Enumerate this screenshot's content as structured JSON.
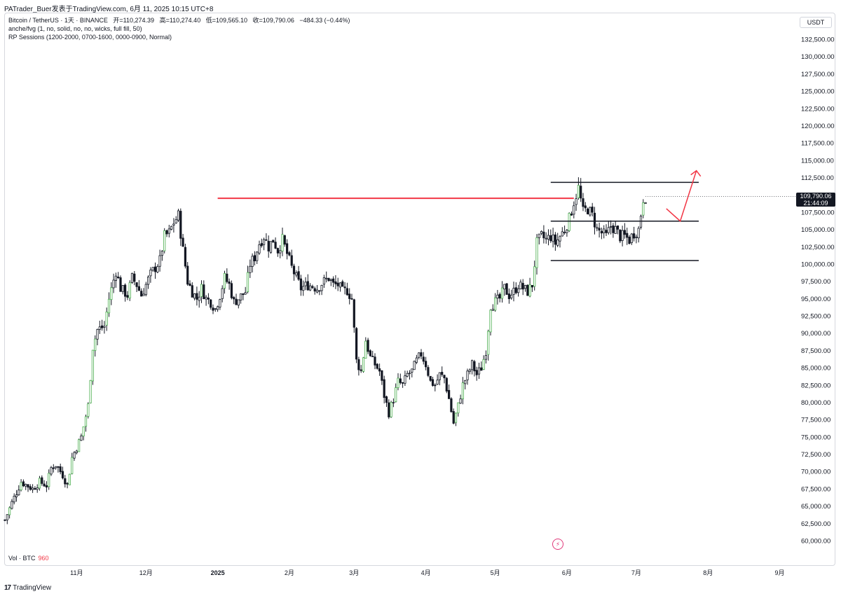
{
  "header": {
    "publisher_line": "PATrader_Buer发表于TradingView.com,  6月 11, 2025 10:15 UTC+8"
  },
  "legend": {
    "symbol": "Bitcoin / TetherUS · 1天 · BINANCE",
    "ohlc": {
      "open": "开=110,274.39",
      "high": "高=110,274.40",
      "low": "低=109,565.10",
      "close": "收=109,790.06",
      "change": "−484.33 (−0.44%)"
    },
    "indicator_1": "anche/fvg (1, no, solid, no, no, wicks, full fill, 50)",
    "indicator_2": "RP Sessions (1200-2000, 0700-1600, 0000-0900, Normal)"
  },
  "price_axis": {
    "currency": "USDT",
    "last_price": "109,790.06",
    "countdown": "21:44:09"
  },
  "volume_legend": {
    "label": "Vol · BTC",
    "value": "960"
  },
  "branding": {
    "logo_text": "TradingView",
    "logo_icon": "tradingview-logo-icon"
  },
  "bolt_icon": "lightning-icon",
  "colors": {
    "up": "#131722",
    "down": "#131722",
    "highlight": "#4caf50",
    "resistance": "#f23645",
    "arrow": "#f23645",
    "range": "#131722"
  },
  "chart_data": {
    "type": "candlestick",
    "interval": "1天",
    "ylim": [
      60000,
      132500
    ],
    "y_ticks": [
      132500,
      130000,
      127500,
      125000,
      122500,
      120000,
      117500,
      115000,
      112500,
      110000,
      107500,
      105000,
      102500,
      100000,
      97500,
      95000,
      92500,
      90000,
      87500,
      85000,
      82500,
      80000,
      77500,
      75000,
      72500,
      70000,
      67500,
      65000,
      62500,
      60000
    ],
    "y_tick_labels": [
      "132,500.00",
      "130,000.00",
      "127,500.00",
      "125,000.00",
      "122,500.00",
      "120,000.00",
      "117,500.00",
      "115,000.00",
      "112,500.00",
      "110,000.00",
      "107,500.00",
      "105,000.00",
      "102,500.00",
      "100,000.00",
      "97,500.00",
      "95,000.00",
      "92,500.00",
      "90,000.00",
      "87,500.00",
      "85,000.00",
      "82,500.00",
      "80,000.00",
      "77,500.00",
      "75,000.00",
      "72,500.00",
      "70,000.00",
      "67,500.00",
      "65,000.00",
      "62,500.00",
      "60,000.00"
    ],
    "x_ticks": [
      {
        "label": "11月",
        "day": 31,
        "bold": false
      },
      {
        "label": "12月",
        "day": 61,
        "bold": false
      },
      {
        "label": "2025",
        "day": 92,
        "bold": true
      },
      {
        "label": "2月",
        "day": 123,
        "bold": false
      },
      {
        "label": "3月",
        "day": 151,
        "bold": false
      },
      {
        "label": "4月",
        "day": 182,
        "bold": false
      },
      {
        "label": "5月",
        "day": 212,
        "bold": false
      },
      {
        "label": "6月",
        "day": 243,
        "bold": false
      },
      {
        "label": "7月",
        "day": 273,
        "bold": false
      },
      {
        "label": "8月",
        "day": 304,
        "bold": false
      },
      {
        "label": "9月",
        "day": 335,
        "bold": false
      }
    ],
    "x_range_days": [
      0,
      366
    ],
    "price_path": [
      [
        0,
        63000
      ],
      [
        3,
        65500
      ],
      [
        7,
        68500
      ],
      [
        12,
        67500
      ],
      [
        15,
        68500
      ],
      [
        18,
        68000
      ],
      [
        20,
        70500
      ],
      [
        22,
        71000
      ],
      [
        25,
        69500
      ],
      [
        27,
        68000
      ],
      [
        29,
        72000
      ],
      [
        33,
        75000
      ],
      [
        36,
        79500
      ],
      [
        38,
        88000
      ],
      [
        40,
        90500
      ],
      [
        43,
        91000
      ],
      [
        45,
        95000
      ],
      [
        48,
        99000
      ],
      [
        50,
        96500
      ],
      [
        53,
        95500
      ],
      [
        55,
        98000
      ],
      [
        57,
        97000
      ],
      [
        59,
        95500
      ],
      [
        61,
        97000
      ],
      [
        63,
        98500
      ],
      [
        65,
        99500
      ],
      [
        67,
        100500
      ],
      [
        69,
        104000
      ],
      [
        71,
        104500
      ],
      [
        73,
        106000
      ],
      [
        75,
        107000
      ],
      [
        77,
        102000
      ],
      [
        79,
        97500
      ],
      [
        81,
        96000
      ],
      [
        83,
        95000
      ],
      [
        85,
        96500
      ],
      [
        87,
        95000
      ],
      [
        89,
        94500
      ],
      [
        91,
        93500
      ],
      [
        93,
        95500
      ],
      [
        95,
        98000
      ],
      [
        97,
        97000
      ],
      [
        99,
        94500
      ],
      [
        101,
        95000
      ],
      [
        104,
        96000
      ],
      [
        106,
        100000
      ],
      [
        108,
        101000
      ],
      [
        110,
        103000
      ],
      [
        112,
        104000
      ],
      [
        114,
        102500
      ],
      [
        116,
        103500
      ],
      [
        118,
        102000
      ],
      [
        120,
        103500
      ],
      [
        122,
        101500
      ],
      [
        124,
        99500
      ],
      [
        126,
        98000
      ],
      [
        128,
        96500
      ],
      [
        131,
        97000
      ],
      [
        133,
        96800
      ],
      [
        135,
        96500
      ],
      [
        137,
        97200
      ],
      [
        140,
        98000
      ],
      [
        142,
        97000
      ],
      [
        144,
        97000
      ],
      [
        146,
        96000
      ],
      [
        148,
        96200
      ],
      [
        150,
        95000
      ],
      [
        152,
        86000
      ],
      [
        154,
        84500
      ],
      [
        156,
        89000
      ],
      [
        158,
        86500
      ],
      [
        160,
        85500
      ],
      [
        162,
        84500
      ],
      [
        164,
        81000
      ],
      [
        166,
        78500
      ],
      [
        168,
        80500
      ],
      [
        170,
        83000
      ],
      [
        172,
        82500
      ],
      [
        174,
        84000
      ],
      [
        176,
        84500
      ],
      [
        178,
        86000
      ],
      [
        180,
        87000
      ],
      [
        182,
        85500
      ],
      [
        184,
        83000
      ],
      [
        186,
        82500
      ],
      [
        188,
        84000
      ],
      [
        190,
        83500
      ],
      [
        192,
        80500
      ],
      [
        194,
        77000
      ],
      [
        196,
        79500
      ],
      [
        198,
        82500
      ],
      [
        200,
        84000
      ],
      [
        202,
        85500
      ],
      [
        204,
        84000
      ],
      [
        206,
        85000
      ],
      [
        208,
        87500
      ],
      [
        210,
        94000
      ],
      [
        212,
        94500
      ],
      [
        214,
        95000
      ],
      [
        216,
        96500
      ],
      [
        218,
        95500
      ],
      [
        220,
        96000
      ],
      [
        222,
        97000
      ],
      [
        224,
        96500
      ],
      [
        226,
        96000
      ],
      [
        228,
        97000
      ],
      [
        230,
        103000
      ],
      [
        232,
        104000
      ],
      [
        234,
        103500
      ],
      [
        236,
        104000
      ],
      [
        238,
        103000
      ],
      [
        240,
        104000
      ],
      [
        242,
        105000
      ],
      [
        244,
        106500
      ],
      [
        246,
        109000
      ],
      [
        248,
        111000
      ],
      [
        250,
        107500
      ],
      [
        252,
        108000
      ],
      [
        254,
        107000
      ],
      [
        256,
        105000
      ],
      [
        258,
        104500
      ],
      [
        260,
        104000
      ],
      [
        262,
        105500
      ],
      [
        264,
        105000
      ],
      [
        266,
        104000
      ],
      [
        268,
        104000
      ],
      [
        270,
        103500
      ],
      [
        272,
        104500
      ],
      [
        274,
        105000
      ],
      [
        276,
        109500
      ],
      [
        277,
        109790
      ]
    ],
    "resistance_line": {
      "price": 109500,
      "from_day": 92,
      "to_day": 246
    },
    "range_lines": [
      {
        "price": 111800,
        "from_day": 236,
        "to_day": 300
      },
      {
        "price": 106200,
        "from_day": 236,
        "to_day": 300
      },
      {
        "price": 100500,
        "from_day": 236,
        "to_day": 300
      }
    ],
    "projection_arrow": [
      {
        "day": 286,
        "price": 108000
      },
      {
        "day": 292,
        "price": 106200
      },
      {
        "day": 299,
        "price": 113500
      }
    ]
  }
}
